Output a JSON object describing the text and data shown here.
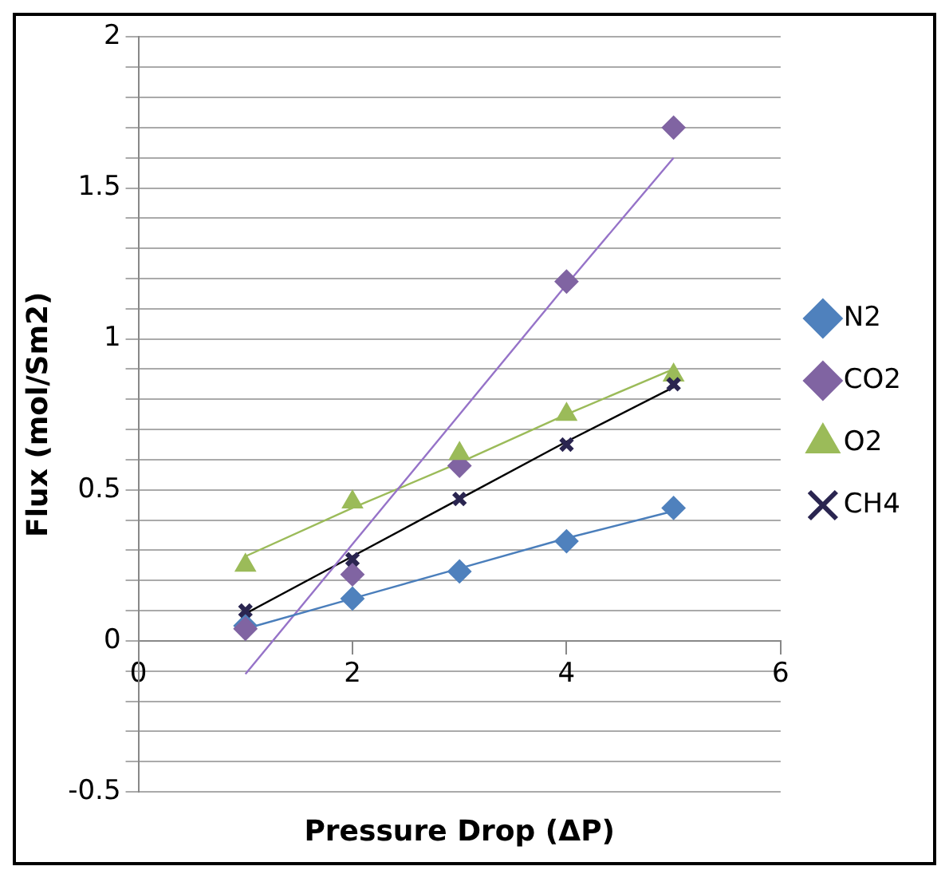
{
  "chart_data": {
    "type": "scatter",
    "xlabel": "Pressure Drop (ΔP)",
    "ylabel": "Flux (mol/Sm2)",
    "x": [
      1,
      2,
      3,
      4,
      5
    ],
    "series": [
      {
        "name": "N2",
        "color": "#4f81bd",
        "marker": "diamond",
        "values": [
          0.05,
          0.14,
          0.23,
          0.33,
          0.44
        ]
      },
      {
        "name": "CO2",
        "color": "#8064a2",
        "marker": "diamond",
        "values": [
          0.04,
          0.22,
          0.58,
          1.19,
          1.7
        ]
      },
      {
        "name": "O2",
        "color": "#9bbb59",
        "marker": "triangle",
        "values": [
          0.25,
          0.46,
          0.62,
          0.75,
          0.88
        ]
      },
      {
        "name": "CH4",
        "color": "#2a2550",
        "marker": "cross",
        "values": [
          0.1,
          0.27,
          0.47,
          0.65,
          0.85
        ]
      },
      {
        "type": "line",
        "color": "#4a7ebb",
        "values": [
          0.04,
          0.14,
          0.24,
          0.34,
          0.43
        ]
      },
      {
        "type": "line",
        "color": "#9673c8",
        "values": [
          -0.11,
          0.32,
          0.75,
          1.18,
          1.6
        ]
      },
      {
        "type": "line",
        "color": "#9bbb59",
        "values": [
          0.28,
          0.44,
          0.59,
          0.75,
          0.9
        ]
      },
      {
        "type": "line",
        "color": "#000000",
        "values": [
          0.09,
          0.28,
          0.47,
          0.66,
          0.84
        ]
      }
    ],
    "xlim": [
      0,
      6
    ],
    "xticks": [
      0,
      2,
      4,
      6
    ],
    "ylim": [
      -0.5,
      2
    ],
    "yticks": [
      -0.5,
      {
        "value": -0.4,
        "label": null
      },
      {
        "value": -0.3,
        "label": null
      },
      {
        "value": -0.2,
        "label": null
      },
      {
        "value": -0.1,
        "label": null
      },
      0,
      {
        "value": 0.1,
        "label": null
      },
      {
        "value": 0.2,
        "label": null
      },
      {
        "value": 0.3,
        "label": null
      },
      {
        "value": 0.4,
        "label": null
      },
      0.5,
      {
        "value": 0.6,
        "label": null
      },
      {
        "value": 0.7,
        "label": null
      },
      {
        "value": 0.8,
        "label": null
      },
      {
        "value": 0.9,
        "label": null
      },
      1,
      {
        "value": 1.1,
        "label": null
      },
      {
        "value": 1.2,
        "label": null
      },
      {
        "value": 1.3,
        "label": null
      },
      {
        "value": 1.4,
        "label": null
      },
      1.5,
      {
        "value": 1.6,
        "label": null
      },
      {
        "value": 1.7,
        "label": null
      },
      {
        "value": 1.8,
        "label": null
      },
      {
        "value": 1.9,
        "label": null
      },
      2
    ],
    "grid": "y",
    "legend": "right",
    "line_style": "solid"
  }
}
